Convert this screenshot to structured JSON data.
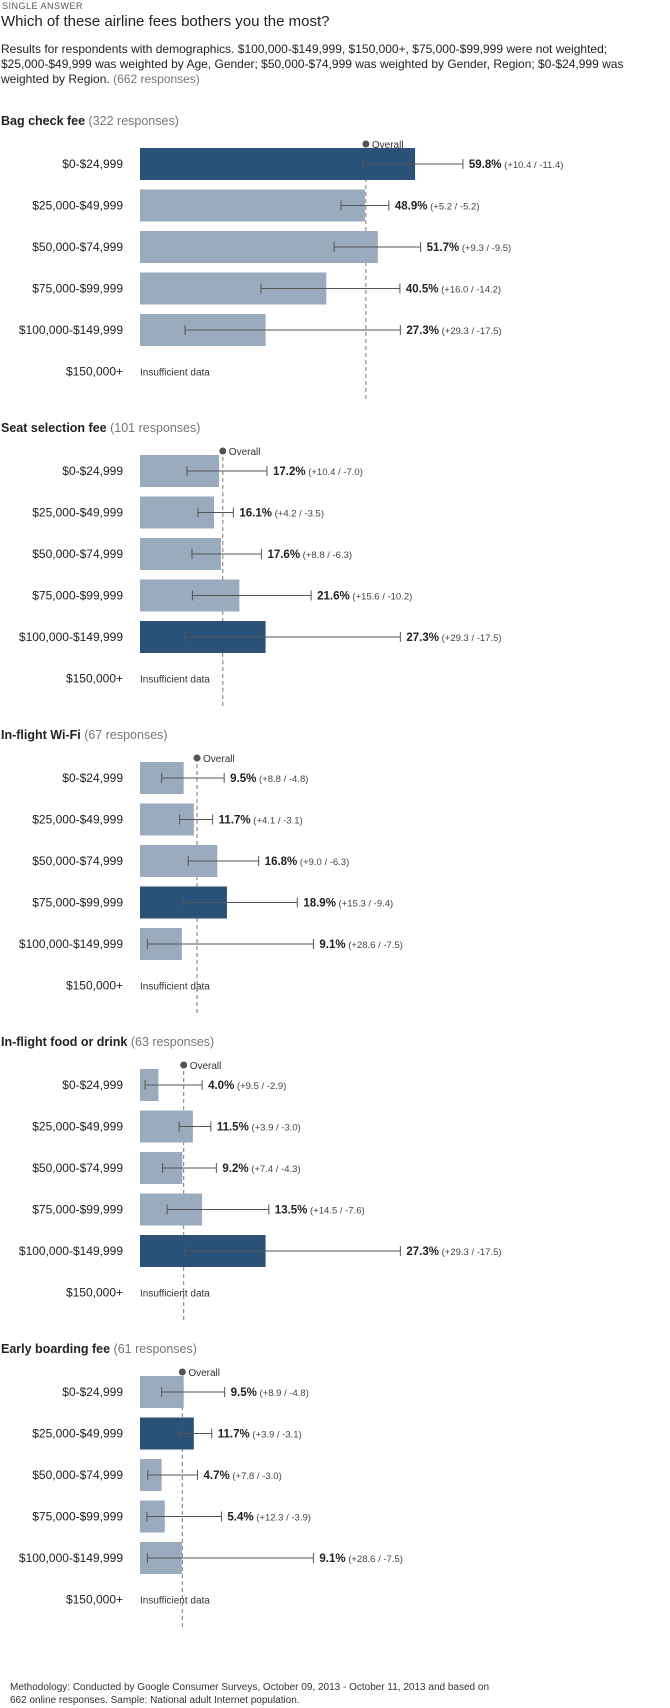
{
  "header": {
    "kicker": "SINGLE ANSWER",
    "question": "Which of these airline fees bothers you the most?",
    "description": "Results for respondents with demographics. $100,000-$149,999, $150,000+, $75,000-$99,999 were not weighted; $25,000-$49,999 was weighted by Age, Gender; $50,000-$74,999 was weighted by Gender, Region; $0-$24,999 was weighted by Region.",
    "responses": "(662 responses)"
  },
  "colors": {
    "bar": "#9aabbd",
    "highlight": "#2a5177",
    "whisker": "#555555",
    "overall_line": "#777777"
  },
  "overall_label": "Overall",
  "footer": {
    "methodology": "Methodology: Conducted by Google Consumer Surveys, October 09, 2013 - October 11, 2013 and based on 662 online responses. Sample: National adult Internet population."
  },
  "chart_data": [
    {
      "type": "bar",
      "title": "Bag check fee",
      "responses": "(322 responses)",
      "overall": 49.1,
      "categories": [
        "$0-$24,999",
        "$25,000-$49,999",
        "$50,000-$74,999",
        "$75,000-$99,999",
        "$100,000-$149,999",
        "$150,000+"
      ],
      "values": [
        59.8,
        48.9,
        51.7,
        40.5,
        27.3,
        null
      ],
      "value_labels": [
        "59.8%",
        "48.9%",
        "51.7%",
        "40.5%",
        "27.3%",
        ""
      ],
      "error_plus": [
        10.4,
        5.2,
        9.3,
        16.0,
        29.3,
        null
      ],
      "error_minus": [
        11.4,
        5.2,
        9.5,
        14.2,
        17.5,
        null
      ],
      "error_labels": [
        "(+10.4 / -11.4)",
        "(+5.2 / -5.2)",
        "(+9.3 / -9.5)",
        "(+16.0 / -14.2)",
        "(+29.3 / -17.5)",
        ""
      ],
      "highlight_index": 0,
      "insufficient_label": "Insufficient data"
    },
    {
      "type": "bar",
      "title": "Seat selection fee",
      "responses": "(101 responses)",
      "overall": 18.0,
      "categories": [
        "$0-$24,999",
        "$25,000-$49,999",
        "$50,000-$74,999",
        "$75,000-$99,999",
        "$100,000-$149,999",
        "$150,000+"
      ],
      "values": [
        17.2,
        16.1,
        17.6,
        21.6,
        27.3,
        null
      ],
      "value_labels": [
        "17.2%",
        "16.1%",
        "17.6%",
        "21.6%",
        "27.3%",
        ""
      ],
      "error_plus": [
        10.4,
        4.2,
        8.8,
        15.6,
        29.3,
        null
      ],
      "error_minus": [
        7.0,
        3.5,
        6.3,
        10.2,
        17.5,
        null
      ],
      "error_labels": [
        "(+10.4 / -7.0)",
        "(+4.2 / -3.5)",
        "(+8.8 / -6.3)",
        "(+15.6 / -10.2)",
        "(+29.3 / -17.5)",
        ""
      ],
      "highlight_index": 4,
      "insufficient_label": "Insufficient data"
    },
    {
      "type": "bar",
      "title": "In-flight Wi-Fi",
      "responses": "(67 responses)",
      "overall": 12.4,
      "categories": [
        "$0-$24,999",
        "$25,000-$49,999",
        "$50,000-$74,999",
        "$75,000-$99,999",
        "$100,000-$149,999",
        "$150,000+"
      ],
      "values": [
        9.5,
        11.7,
        16.8,
        18.9,
        9.1,
        null
      ],
      "value_labels": [
        "9.5%",
        "11.7%",
        "16.8%",
        "18.9%",
        "9.1%",
        ""
      ],
      "error_plus": [
        8.8,
        4.1,
        9.0,
        15.3,
        28.6,
        null
      ],
      "error_minus": [
        4.8,
        3.1,
        6.3,
        9.4,
        7.5,
        null
      ],
      "error_labels": [
        "(+8.8 / -4.8)",
        "(+4.1 / -3.1)",
        "(+9.0 / -6.3)",
        "(+15.3 / -9.4)",
        "(+28.6 / -7.5)",
        ""
      ],
      "highlight_index": 3,
      "insufficient_label": "Insufficient data"
    },
    {
      "type": "bar",
      "title": "In-flight food or drink",
      "responses": "(63 responses)",
      "overall": 9.5,
      "categories": [
        "$0-$24,999",
        "$25,000-$49,999",
        "$50,000-$74,999",
        "$75,000-$99,999",
        "$100,000-$149,999",
        "$150,000+"
      ],
      "values": [
        4.0,
        11.5,
        9.2,
        13.5,
        27.3,
        null
      ],
      "value_labels": [
        "4.0%",
        "11.5%",
        "9.2%",
        "13.5%",
        "27.3%",
        ""
      ],
      "error_plus": [
        9.5,
        3.9,
        7.4,
        14.5,
        29.3,
        null
      ],
      "error_minus": [
        2.9,
        3.0,
        4.3,
        7.6,
        17.5,
        null
      ],
      "error_labels": [
        "(+9.5 / -2.9)",
        "(+3.9 / -3.0)",
        "(+7.4 / -4.3)",
        "(+14.5 / -7.6)",
        "(+29.3 / -17.5)",
        ""
      ],
      "highlight_index": 4,
      "insufficient_label": "Insufficient data"
    },
    {
      "type": "bar",
      "title": "Early boarding fee",
      "responses": "(61 responses)",
      "overall": 9.2,
      "categories": [
        "$0-$24,999",
        "$25,000-$49,999",
        "$50,000-$74,999",
        "$75,000-$99,999",
        "$100,000-$149,999",
        "$150,000+"
      ],
      "values": [
        9.5,
        11.7,
        4.7,
        5.4,
        9.1,
        null
      ],
      "value_labels": [
        "9.5%",
        "11.7%",
        "4.7%",
        "5.4%",
        "9.1%",
        ""
      ],
      "error_plus": [
        8.9,
        3.9,
        7.8,
        12.3,
        28.6,
        null
      ],
      "error_minus": [
        4.8,
        3.1,
        3.0,
        3.9,
        7.5,
        null
      ],
      "error_labels": [
        "(+8.9 / -4.8)",
        "(+3.9 / -3.1)",
        "(+7.8 / -3.0)",
        "(+12.3 / -3.9)",
        "(+28.6 / -7.5)",
        ""
      ],
      "highlight_index": 1,
      "insufficient_label": "Insufficient data"
    }
  ]
}
